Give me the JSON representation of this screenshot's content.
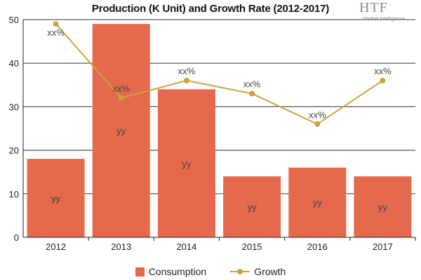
{
  "title": "Production (K Unit) and Growth Rate (2012-2017)",
  "logo": {
    "main": "HTF",
    "sub": "Market Intelligence"
  },
  "colors": {
    "bar": "#e5694d",
    "line": "#c9a33b",
    "grid": "#333333",
    "axis": "#222222"
  },
  "chart_data": {
    "type": "bar",
    "categories": [
      "2012",
      "2013",
      "2014",
      "2015",
      "2016",
      "2017"
    ],
    "ylim": [
      0,
      50
    ],
    "yticks": [
      0,
      10,
      20,
      30,
      40,
      50
    ],
    "ytick_labels": [
      "0",
      "10",
      "20",
      "30",
      "40",
      "50"
    ],
    "grid": true,
    "legend_position": "bottom-center",
    "series": [
      {
        "name": "Consumption",
        "type": "bar",
        "values": [
          18,
          49,
          34,
          14,
          16,
          14
        ],
        "labels": [
          "yy",
          "yy",
          "yy",
          "yy",
          "yy",
          "yy"
        ]
      },
      {
        "name": "Growth",
        "type": "line",
        "values": [
          49,
          32,
          36,
          33,
          26,
          36
        ],
        "labels": [
          "xx%",
          "xx%",
          "xx%",
          "xx%",
          "xx%",
          "xx%"
        ]
      }
    ]
  }
}
